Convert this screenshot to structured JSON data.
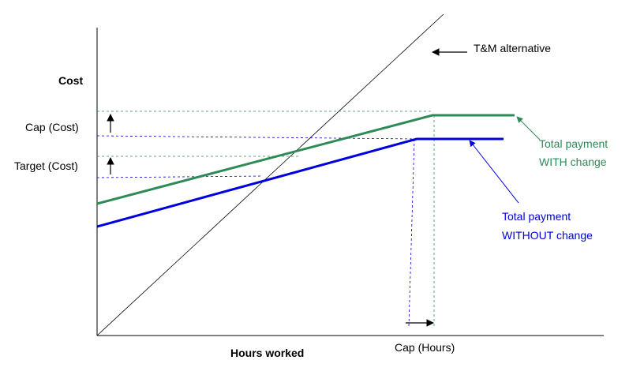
{
  "axes": {
    "y_label": "Cost",
    "x_label": "Hours worked"
  },
  "labels": {
    "cap_cost": "Cap (Cost)",
    "target_cost": "Target (Cost)",
    "cap_hours": "Cap (Hours)",
    "tm_alternative": "T&M alternative",
    "with_change_line1": "Total payment",
    "with_change_line2": "WITH change",
    "without_change_line1": "Total payment",
    "without_change_line2": "WITHOUT change"
  },
  "colors": {
    "with_change": "#2e8b57",
    "without_change": "#0000dd",
    "axis": "#000000",
    "tm_line": "#000000"
  }
}
